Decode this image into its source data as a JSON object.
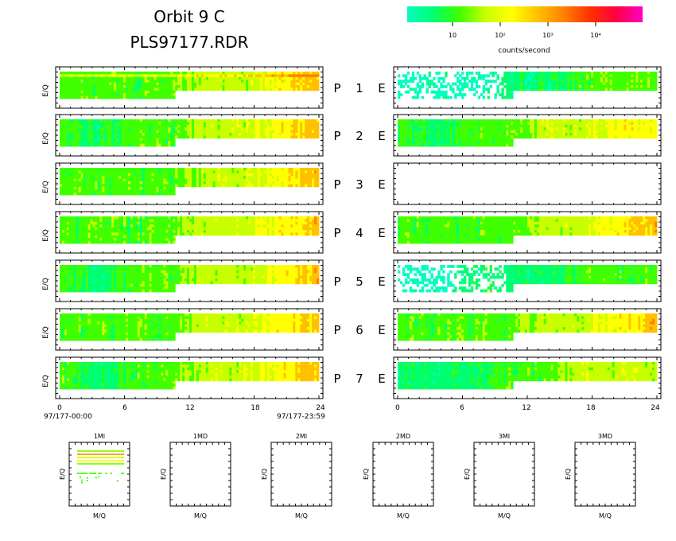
{
  "header": {
    "title_line1": "Orbit 9 C",
    "title_line2": "PLS97177.RDR"
  },
  "colorbar": {
    "colors": [
      "#00ffc0",
      "#00ff70",
      "#40ff00",
      "#c8ff00",
      "#ffff00",
      "#ffc000",
      "#ff8000",
      "#ff3000",
      "#ff0040",
      "#ff00c8"
    ],
    "tick_labels": [
      "10",
      "10²",
      "10³",
      "10⁴"
    ],
    "label": "counts/second"
  },
  "spectrogram_labels": {
    "ylabel": "E/Q",
    "left_x_ticks": [
      "0",
      "6",
      "12",
      "18",
      "24"
    ],
    "right_x_ticks": [
      "0",
      "6",
      "12",
      "18",
      "24"
    ],
    "start_time": "97/177-00:00",
    "end_time": "97/177-23:59"
  },
  "chart_data": [
    {
      "type": "heatmap",
      "group": "P (left column)",
      "ylabel": "E/Q",
      "xlim": [
        0,
        24
      ],
      "color_scale": "log counts/second",
      "rows": [
        {
          "name": "P 1",
          "levels": [
            2,
            2,
            2,
            2,
            3,
            3,
            4,
            5
          ],
          "bright_band": true
        },
        {
          "name": "P 2",
          "levels": [
            2,
            1,
            2,
            2,
            3,
            3,
            4,
            5
          ]
        },
        {
          "name": "P 3",
          "levels": [
            2,
            2,
            2,
            2,
            3,
            3,
            4,
            5
          ]
        },
        {
          "name": "P 4",
          "levels": [
            2,
            2,
            2,
            2,
            3,
            3,
            4,
            5
          ]
        },
        {
          "name": "P 5",
          "levels": [
            2,
            1,
            2,
            2,
            3,
            3,
            4,
            5
          ]
        },
        {
          "name": "P 6",
          "levels": [
            2,
            2,
            2,
            2,
            3,
            3,
            4,
            5
          ]
        },
        {
          "name": "P 7",
          "levels": [
            2,
            1,
            2,
            2,
            3,
            3,
            4,
            5
          ]
        }
      ]
    },
    {
      "type": "heatmap",
      "group": "E (right column)",
      "xlim": [
        0,
        24
      ],
      "color_scale": "log counts/second",
      "rows": [
        {
          "name": "E 1",
          "levels": [
            0,
            0,
            0,
            1,
            1,
            2,
            2,
            2
          ],
          "sparse_start": true
        },
        {
          "name": "E 2",
          "levels": [
            2,
            1,
            2,
            2,
            3,
            3,
            4,
            4
          ]
        },
        {
          "name": "E 3",
          "levels": []
        },
        {
          "name": "E 4",
          "levels": [
            2,
            2,
            2,
            2,
            3,
            3,
            4,
            5
          ]
        },
        {
          "name": "E 5",
          "levels": [
            0,
            0,
            1,
            1,
            1,
            2,
            2,
            2
          ],
          "sparse_start": true
        },
        {
          "name": "E 6",
          "levels": [
            2,
            2,
            2,
            2,
            3,
            3,
            4,
            5
          ]
        },
        {
          "name": "E 7",
          "levels": [
            1,
            1,
            1,
            2,
            2,
            3,
            3,
            3
          ]
        }
      ]
    },
    {
      "type": "scatter",
      "group": "mass spectra",
      "xlabel": "M/Q",
      "ylabel": "E/Q",
      "panels": [
        {
          "title": "1MI",
          "has_data": true
        },
        {
          "title": "1MD",
          "has_data": false
        },
        {
          "title": "2MI",
          "has_data": false
        },
        {
          "title": "2MD",
          "has_data": false
        },
        {
          "title": "3MI",
          "has_data": false
        },
        {
          "title": "3MD",
          "has_data": false
        }
      ]
    }
  ],
  "row_labels": {
    "p_letter": "P",
    "e_letter": "E",
    "numbers": [
      "1",
      "2",
      "3",
      "4",
      "5",
      "6",
      "7"
    ]
  },
  "mass_panel_labels": {
    "xlabel": "M/Q",
    "ylabel": "E/Q",
    "titles": [
      "1MI",
      "1MD",
      "2MI",
      "2MD",
      "3MI",
      "3MD"
    ]
  }
}
